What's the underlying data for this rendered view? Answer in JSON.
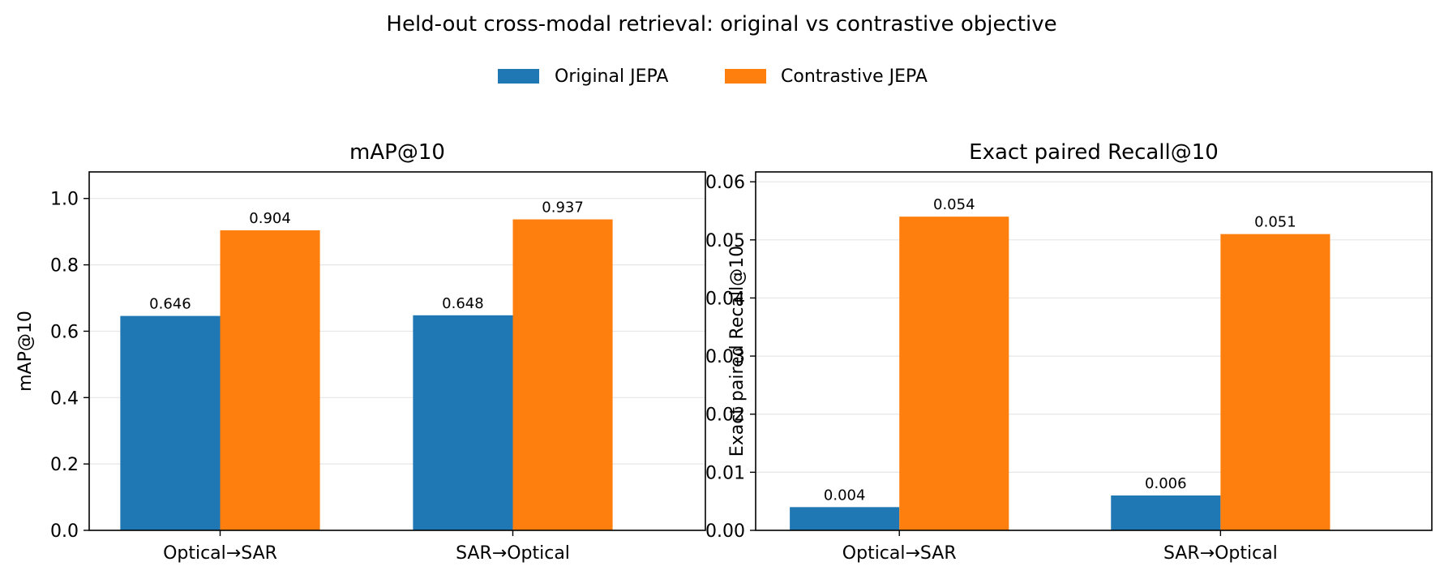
{
  "figure": {
    "title": "Held-out cross-modal retrieval: original vs contrastive objective",
    "legend": [
      {
        "label": "Original JEPA",
        "color": "#1f77b4"
      },
      {
        "label": "Contrastive JEPA",
        "color": "#ff7f0e"
      }
    ]
  },
  "chart_data": [
    {
      "type": "bar",
      "title": "mAP@10",
      "xlabel": "",
      "ylabel": "mAP@10",
      "categories": [
        "Optical→SAR",
        "SAR→Optical"
      ],
      "series": [
        {
          "name": "Original JEPA",
          "values": [
            0.646,
            0.648
          ],
          "color": "#1f77b4"
        },
        {
          "name": "Contrastive JEPA",
          "values": [
            0.904,
            0.937
          ],
          "color": "#ff7f0e"
        }
      ],
      "data_labels": [
        [
          "0.646",
          "0.648"
        ],
        [
          "0.904",
          "0.937"
        ]
      ],
      "ylim": [
        0,
        1.08
      ],
      "yticks": [
        0.0,
        0.2,
        0.4,
        0.6,
        0.8,
        1.0
      ],
      "ytick_labels": [
        "0.0",
        "0.2",
        "0.4",
        "0.6",
        "0.8",
        "1.0"
      ],
      "grid": "y",
      "legend_position": "top-center"
    },
    {
      "type": "bar",
      "title": "Exact paired Recall@10",
      "xlabel": "",
      "ylabel": "Exact paired Recall@10",
      "categories": [
        "Optical→SAR",
        "SAR→Optical"
      ],
      "series": [
        {
          "name": "Original JEPA",
          "values": [
            0.004,
            0.006
          ],
          "color": "#1f77b4"
        },
        {
          "name": "Contrastive JEPA",
          "values": [
            0.054,
            0.051
          ],
          "color": "#ff7f0e"
        }
      ],
      "data_labels": [
        [
          "0.004",
          "0.006"
        ],
        [
          "0.054",
          "0.051"
        ]
      ],
      "ylim": [
        0,
        0.0617
      ],
      "yticks": [
        0.0,
        0.01,
        0.02,
        0.03,
        0.04,
        0.05,
        0.06
      ],
      "ytick_labels": [
        "0.00",
        "0.01",
        "0.02",
        "0.03",
        "0.04",
        "0.05",
        "0.06"
      ],
      "grid": "y",
      "legend_position": "top-center"
    }
  ]
}
